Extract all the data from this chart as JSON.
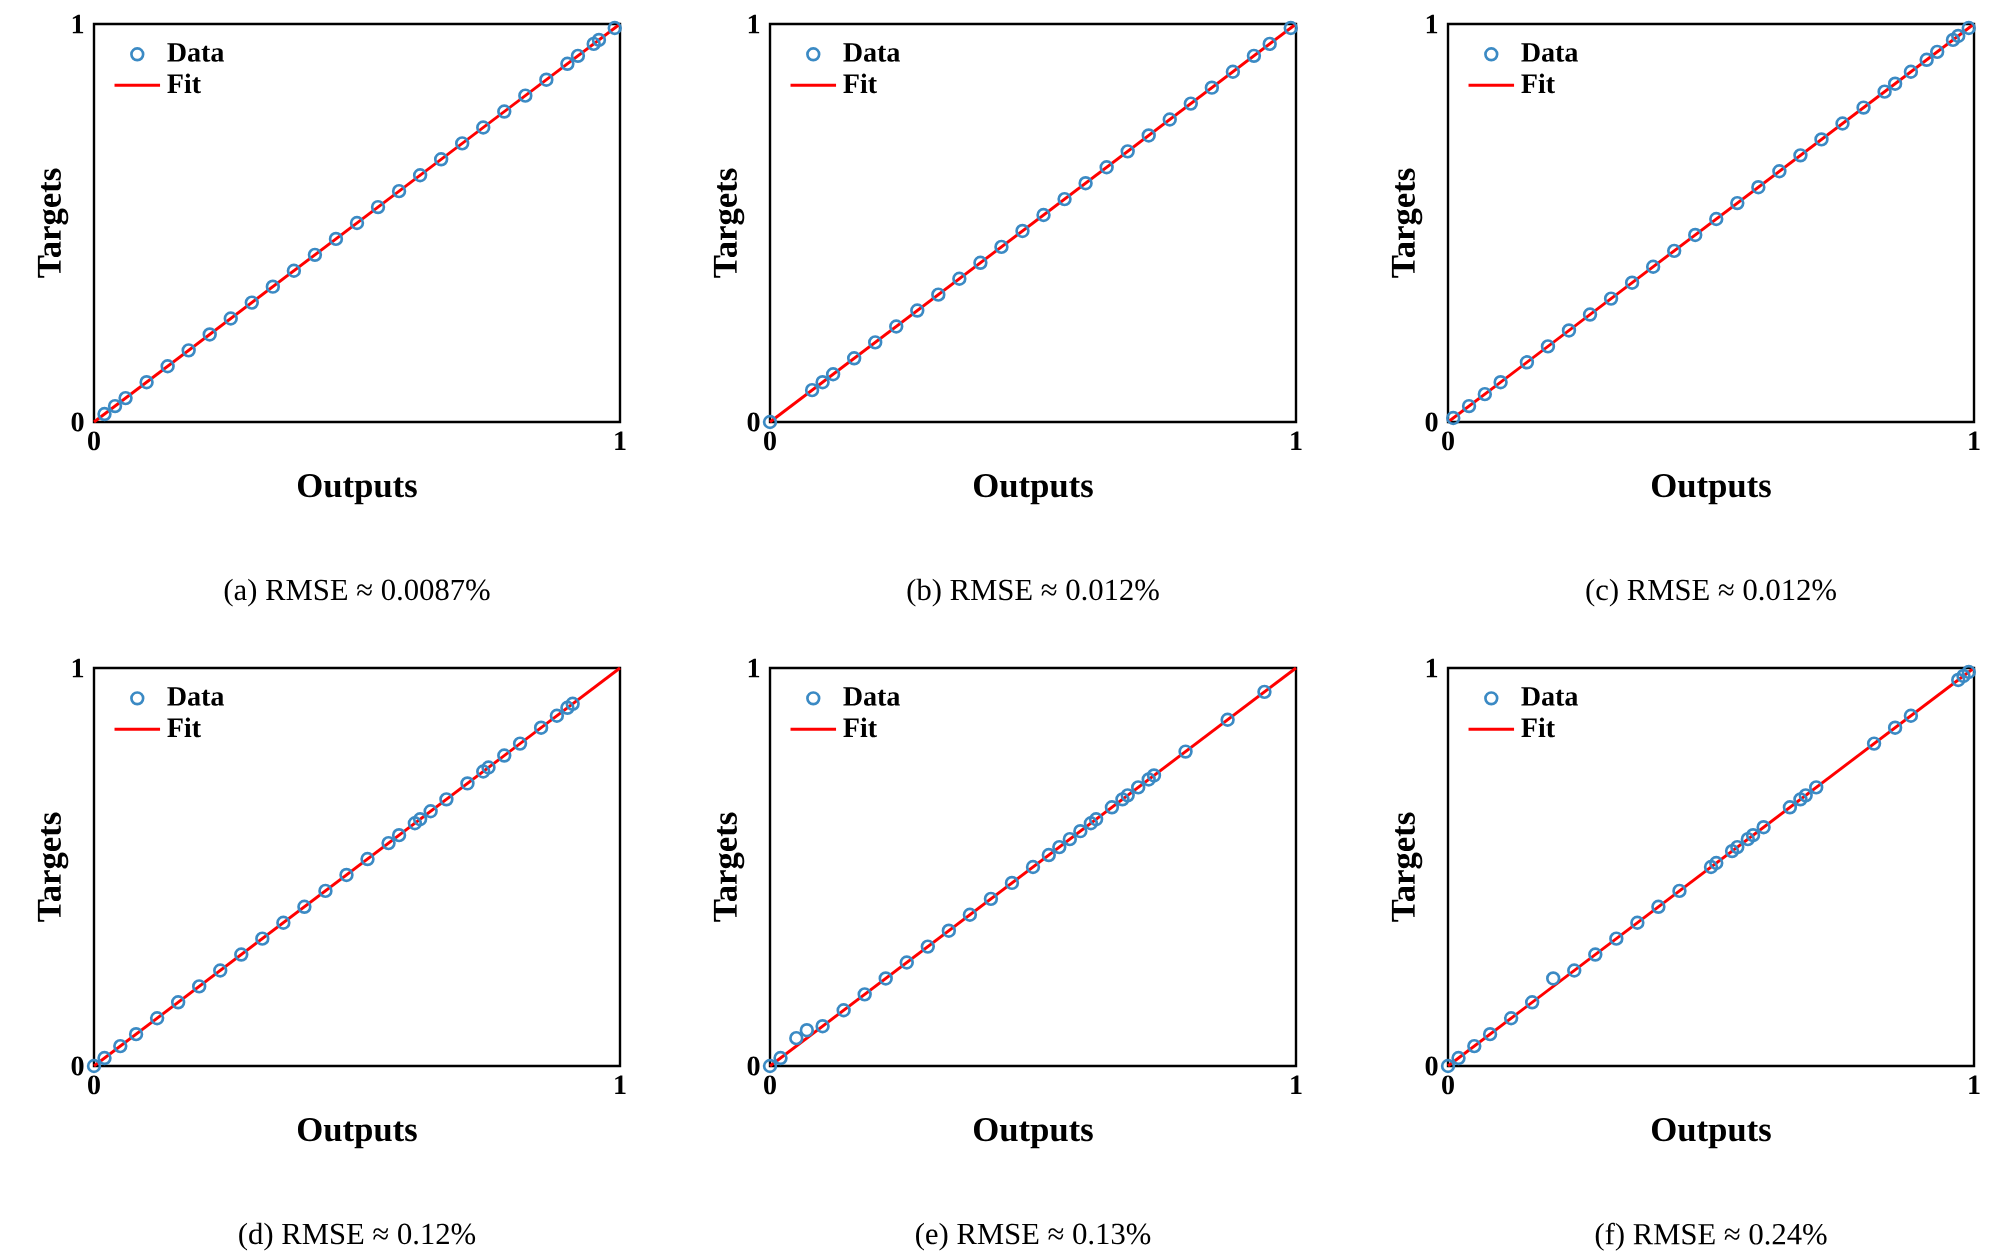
{
  "chart_data": [
    {
      "type": "scatter",
      "xlabel": "Outputs",
      "ylabel": "Targets",
      "xlim": [
        0,
        1
      ],
      "ylim": [
        0,
        1
      ],
      "xticks": [
        0,
        1
      ],
      "yticks": [
        0,
        1
      ],
      "legend": "top left",
      "annotations": [
        "(a)  RMSE ≈ 0.0087%"
      ],
      "series": [
        {
          "name": "Data",
          "marker": "circle",
          "color": "#3b8ac4",
          "x": [
            0.02,
            0.04,
            0.06,
            0.1,
            0.14,
            0.18,
            0.22,
            0.26,
            0.3,
            0.34,
            0.38,
            0.42,
            0.46,
            0.5,
            0.54,
            0.58,
            0.62,
            0.66,
            0.7,
            0.74,
            0.78,
            0.82,
            0.86,
            0.9,
            0.92,
            0.95,
            0.96,
            0.99
          ],
          "values": [
            0.02,
            0.04,
            0.06,
            0.1,
            0.14,
            0.18,
            0.22,
            0.26,
            0.3,
            0.34,
            0.38,
            0.42,
            0.46,
            0.5,
            0.54,
            0.58,
            0.62,
            0.66,
            0.7,
            0.74,
            0.78,
            0.82,
            0.86,
            0.9,
            0.92,
            0.95,
            0.96,
            0.99
          ]
        },
        {
          "name": "Fit",
          "type": "line",
          "color": "#ff0000",
          "x": [
            0,
            1
          ],
          "values": [
            0,
            1
          ]
        }
      ]
    },
    {
      "type": "scatter",
      "xlabel": "Outputs",
      "ylabel": "Targets",
      "xlim": [
        0,
        1
      ],
      "ylim": [
        0,
        1
      ],
      "xticks": [
        0,
        1
      ],
      "yticks": [
        0,
        1
      ],
      "legend": "top left",
      "annotations": [
        "(b)  RMSE ≈ 0.012%"
      ],
      "series": [
        {
          "name": "Data",
          "marker": "circle",
          "color": "#3b8ac4",
          "x": [
            0,
            0.08,
            0.1,
            0.12,
            0.16,
            0.2,
            0.24,
            0.28,
            0.32,
            0.36,
            0.4,
            0.44,
            0.48,
            0.52,
            0.56,
            0.6,
            0.64,
            0.68,
            0.72,
            0.76,
            0.8,
            0.84,
            0.88,
            0.92,
            0.95,
            0.99
          ],
          "values": [
            0,
            0.08,
            0.1,
            0.12,
            0.16,
            0.2,
            0.24,
            0.28,
            0.32,
            0.36,
            0.4,
            0.44,
            0.48,
            0.52,
            0.56,
            0.6,
            0.64,
            0.68,
            0.72,
            0.76,
            0.8,
            0.84,
            0.88,
            0.92,
            0.95,
            0.99
          ]
        },
        {
          "name": "Fit",
          "type": "line",
          "color": "#ff0000",
          "x": [
            0,
            1
          ],
          "values": [
            0,
            1
          ]
        }
      ]
    },
    {
      "type": "scatter",
      "xlabel": "Outputs",
      "ylabel": "Targets",
      "xlim": [
        0,
        1
      ],
      "ylim": [
        0,
        1
      ],
      "xticks": [
        0,
        1
      ],
      "yticks": [
        0,
        1
      ],
      "legend": "top left",
      "annotations": [
        "(c)  RMSE ≈ 0.012%"
      ],
      "series": [
        {
          "name": "Data",
          "marker": "circle",
          "color": "#3b8ac4",
          "x": [
            0.01,
            0.04,
            0.07,
            0.1,
            0.15,
            0.19,
            0.23,
            0.27,
            0.31,
            0.35,
            0.39,
            0.43,
            0.47,
            0.51,
            0.55,
            0.59,
            0.63,
            0.67,
            0.71,
            0.75,
            0.79,
            0.83,
            0.85,
            0.88,
            0.91,
            0.93,
            0.96,
            0.97,
            0.99
          ],
          "values": [
            0.01,
            0.04,
            0.07,
            0.1,
            0.15,
            0.19,
            0.23,
            0.27,
            0.31,
            0.35,
            0.39,
            0.43,
            0.47,
            0.51,
            0.55,
            0.59,
            0.63,
            0.67,
            0.71,
            0.75,
            0.79,
            0.83,
            0.85,
            0.88,
            0.91,
            0.93,
            0.96,
            0.97,
            0.99
          ]
        },
        {
          "name": "Fit",
          "type": "line",
          "color": "#ff0000",
          "x": [
            0,
            1
          ],
          "values": [
            0,
            1
          ]
        }
      ]
    },
    {
      "type": "scatter",
      "xlabel": "Outputs",
      "ylabel": "Targets",
      "xlim": [
        0,
        1
      ],
      "ylim": [
        0,
        1
      ],
      "xticks": [
        0,
        1
      ],
      "yticks": [
        0,
        1
      ],
      "legend": "top left",
      "annotations": [
        "(d)  RMSE ≈ 0.12%"
      ],
      "series": [
        {
          "name": "Data",
          "marker": "circle",
          "color": "#3b8ac4",
          "x": [
            0,
            0.02,
            0.05,
            0.08,
            0.12,
            0.16,
            0.2,
            0.24,
            0.28,
            0.32,
            0.36,
            0.4,
            0.44,
            0.48,
            0.52,
            0.56,
            0.58,
            0.61,
            0.62,
            0.64,
            0.67,
            0.71,
            0.74,
            0.75,
            0.78,
            0.81,
            0.85,
            0.88,
            0.9,
            0.91
          ],
          "values": [
            0,
            0.02,
            0.05,
            0.08,
            0.12,
            0.16,
            0.2,
            0.24,
            0.28,
            0.32,
            0.36,
            0.4,
            0.44,
            0.48,
            0.52,
            0.56,
            0.58,
            0.61,
            0.62,
            0.64,
            0.67,
            0.71,
            0.74,
            0.75,
            0.78,
            0.81,
            0.85,
            0.88,
            0.9,
            0.91
          ]
        },
        {
          "name": "Fit",
          "type": "line",
          "color": "#ff0000",
          "x": [
            0,
            1
          ],
          "values": [
            0,
            1
          ]
        }
      ]
    },
    {
      "type": "scatter",
      "xlabel": "Outputs",
      "ylabel": "Targets",
      "xlim": [
        0,
        1
      ],
      "ylim": [
        0,
        1
      ],
      "xticks": [
        0,
        1
      ],
      "yticks": [
        0,
        1
      ],
      "legend": "top left",
      "annotations": [
        "(e)  RMSE ≈ 0.13%"
      ],
      "series": [
        {
          "name": "Data",
          "marker": "circle",
          "color": "#3b8ac4",
          "x": [
            0,
            0.02,
            0.05,
            0.07,
            0.1,
            0.14,
            0.18,
            0.22,
            0.26,
            0.3,
            0.34,
            0.38,
            0.42,
            0.46,
            0.5,
            0.53,
            0.55,
            0.57,
            0.59,
            0.61,
            0.62,
            0.65,
            0.67,
            0.68,
            0.7,
            0.72,
            0.73,
            0.79,
            0.87,
            0.94
          ],
          "values": [
            0,
            0.02,
            0.07,
            0.09,
            0.1,
            0.14,
            0.18,
            0.22,
            0.26,
            0.3,
            0.34,
            0.38,
            0.42,
            0.46,
            0.5,
            0.53,
            0.55,
            0.57,
            0.59,
            0.61,
            0.62,
            0.65,
            0.67,
            0.68,
            0.7,
            0.72,
            0.73,
            0.79,
            0.87,
            0.94
          ]
        },
        {
          "name": "Fit",
          "type": "line",
          "color": "#ff0000",
          "x": [
            0,
            1
          ],
          "values": [
            0,
            1
          ]
        }
      ]
    },
    {
      "type": "scatter",
      "xlabel": "Outputs",
      "ylabel": "Targets",
      "xlim": [
        0,
        1
      ],
      "ylim": [
        0,
        1
      ],
      "xticks": [
        0,
        1
      ],
      "yticks": [
        0,
        1
      ],
      "legend": "top left",
      "annotations": [
        "(f)  RMSE ≈ 0.24%"
      ],
      "series": [
        {
          "name": "Data",
          "marker": "circle",
          "color": "#3b8ac4",
          "x": [
            0,
            0.02,
            0.05,
            0.08,
            0.12,
            0.16,
            0.2,
            0.24,
            0.28,
            0.32,
            0.36,
            0.4,
            0.44,
            0.5,
            0.51,
            0.54,
            0.55,
            0.57,
            0.58,
            0.6,
            0.65,
            0.67,
            0.68,
            0.7,
            0.81,
            0.85,
            0.88,
            0.97,
            0.98,
            0.99
          ],
          "values": [
            0,
            0.02,
            0.05,
            0.08,
            0.12,
            0.16,
            0.22,
            0.24,
            0.28,
            0.32,
            0.36,
            0.4,
            0.44,
            0.5,
            0.51,
            0.54,
            0.55,
            0.57,
            0.58,
            0.6,
            0.65,
            0.67,
            0.68,
            0.7,
            0.81,
            0.85,
            0.88,
            0.97,
            0.98,
            0.99
          ]
        },
        {
          "name": "Fit",
          "type": "line",
          "color": "#ff0000",
          "x": [
            0,
            1
          ],
          "values": [
            0,
            1
          ]
        }
      ]
    }
  ]
}
